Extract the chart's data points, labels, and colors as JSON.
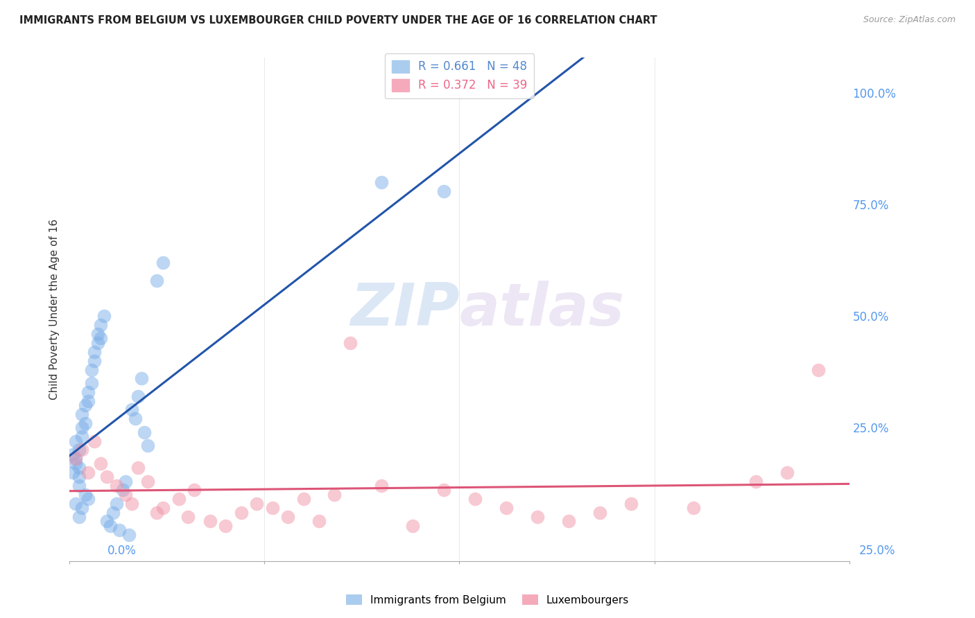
{
  "title": "IMMIGRANTS FROM BELGIUM VS LUXEMBOURGER CHILD POVERTY UNDER THE AGE OF 16 CORRELATION CHART",
  "source": "Source: ZipAtlas.com",
  "ylabel": "Child Poverty Under the Age of 16",
  "watermark_zip": "ZIP",
  "watermark_atlas": "atlas",
  "legend1_label": "R = 0.661   N = 48",
  "legend2_label": "R = 0.372   N = 39",
  "blue_scatter_color": "#7aaee8",
  "pink_scatter_color": "#f094a8",
  "blue_line_color": "#2255aa",
  "pink_line_color": "#dd5577",
  "grid_color": "#cccccc",
  "background_color": "#ffffff",
  "xlim": [
    0.0,
    0.25
  ],
  "ylim": [
    -0.05,
    1.08
  ],
  "right_ytick_vals": [
    1.0,
    0.75,
    0.5,
    0.25
  ],
  "right_ytick_labels": [
    "100.0%",
    "75.0%",
    "50.0%",
    "25.0%"
  ],
  "xlabel_start": "0.0%",
  "xlabel_end": "25.0%",
  "legend_bottom_1": "Immigrants from Belgium",
  "legend_bottom_2": "Luxembourgers",
  "blue_x": [
    0.001,
    0.001,
    0.002,
    0.002,
    0.002,
    0.002,
    0.003,
    0.003,
    0.003,
    0.003,
    0.003,
    0.004,
    0.004,
    0.004,
    0.004,
    0.005,
    0.005,
    0.005,
    0.006,
    0.006,
    0.006,
    0.007,
    0.007,
    0.008,
    0.008,
    0.009,
    0.009,
    0.01,
    0.01,
    0.011,
    0.012,
    0.013,
    0.014,
    0.015,
    0.016,
    0.017,
    0.018,
    0.019,
    0.02,
    0.021,
    0.022,
    0.023,
    0.024,
    0.025,
    0.028,
    0.03,
    0.1,
    0.12
  ],
  "blue_y": [
    0.19,
    0.15,
    0.22,
    0.18,
    0.17,
    0.08,
    0.2,
    0.16,
    0.14,
    0.12,
    0.05,
    0.28,
    0.25,
    0.23,
    0.07,
    0.3,
    0.26,
    0.1,
    0.33,
    0.31,
    0.09,
    0.38,
    0.35,
    0.42,
    0.4,
    0.46,
    0.44,
    0.48,
    0.45,
    0.5,
    0.04,
    0.03,
    0.06,
    0.08,
    0.02,
    0.11,
    0.13,
    0.01,
    0.29,
    0.27,
    0.32,
    0.36,
    0.24,
    0.21,
    0.58,
    0.62,
    0.8,
    0.78
  ],
  "pink_x": [
    0.002,
    0.004,
    0.006,
    0.008,
    0.01,
    0.012,
    0.015,
    0.018,
    0.02,
    0.022,
    0.025,
    0.028,
    0.03,
    0.035,
    0.038,
    0.04,
    0.045,
    0.05,
    0.055,
    0.06,
    0.065,
    0.07,
    0.075,
    0.08,
    0.085,
    0.09,
    0.1,
    0.11,
    0.12,
    0.13,
    0.14,
    0.15,
    0.16,
    0.17,
    0.18,
    0.2,
    0.22,
    0.23,
    0.24
  ],
  "pink_y": [
    0.18,
    0.2,
    0.15,
    0.22,
    0.17,
    0.14,
    0.12,
    0.1,
    0.08,
    0.16,
    0.13,
    0.06,
    0.07,
    0.09,
    0.05,
    0.11,
    0.04,
    0.03,
    0.06,
    0.08,
    0.07,
    0.05,
    0.09,
    0.04,
    0.1,
    0.44,
    0.12,
    0.03,
    0.11,
    0.09,
    0.07,
    0.05,
    0.04,
    0.06,
    0.08,
    0.07,
    0.13,
    0.15,
    0.38
  ]
}
